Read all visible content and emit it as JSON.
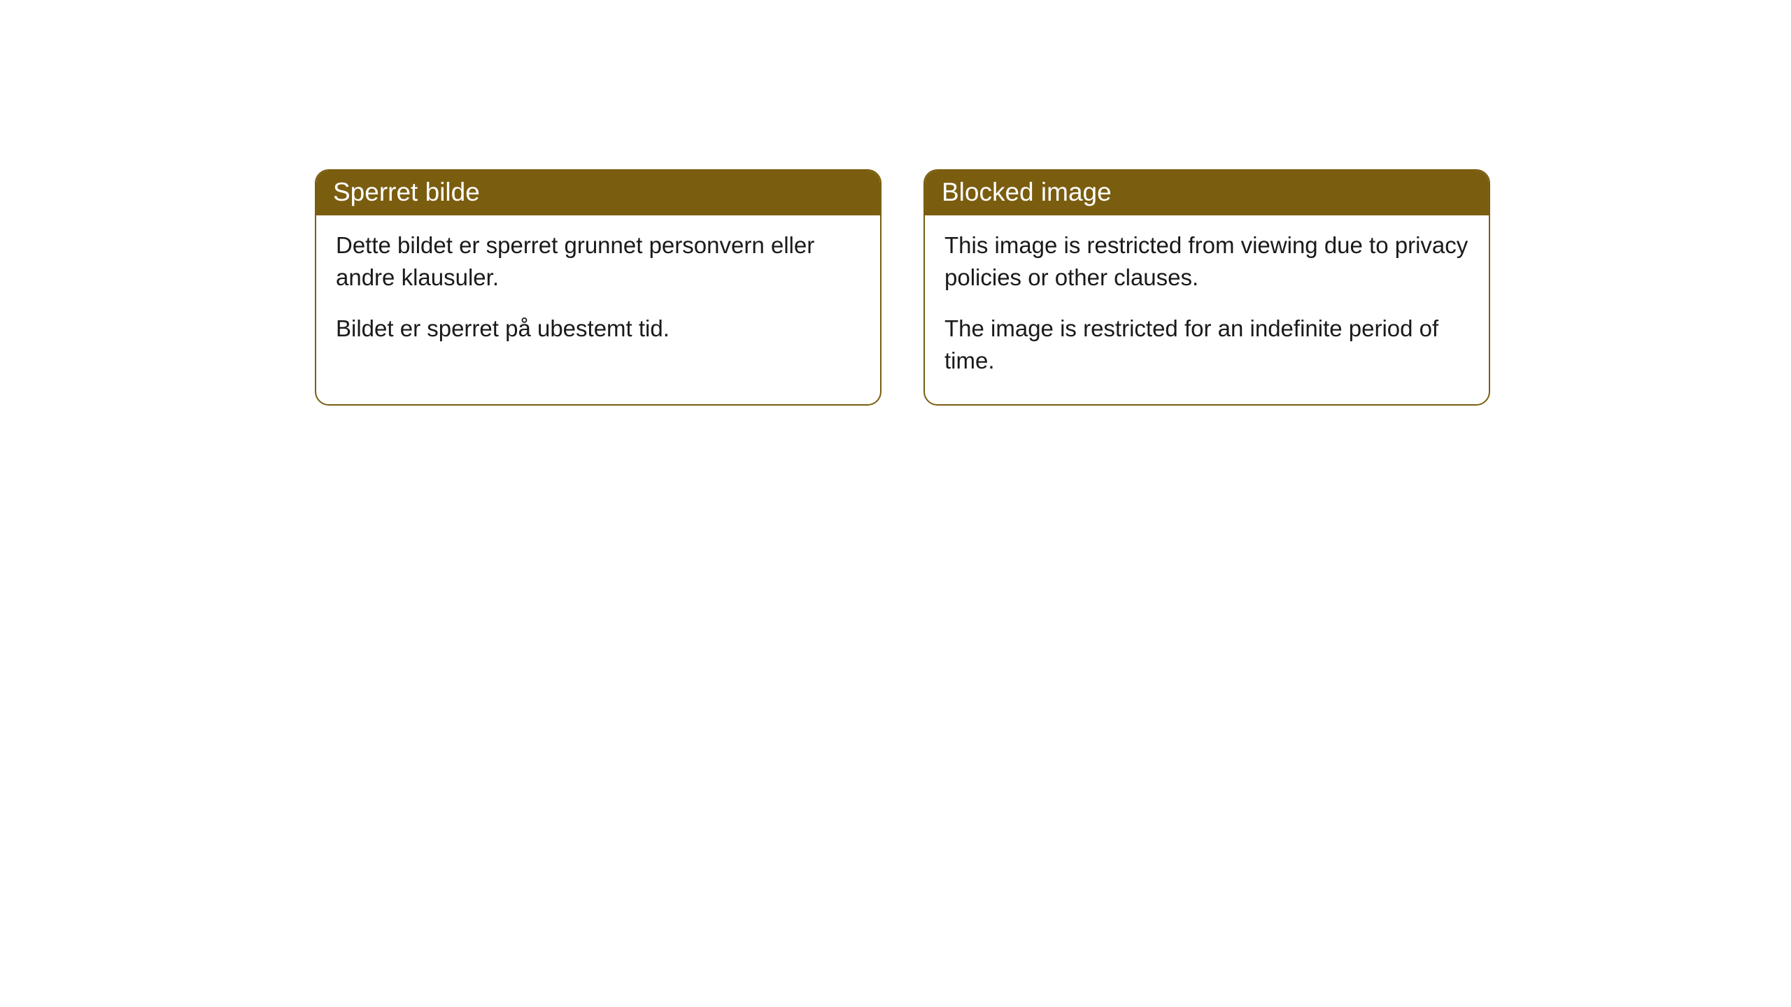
{
  "notices": [
    {
      "title": "Sperret bilde",
      "paragraph1": "Dette bildet er sperret grunnet personvern eller andre klausuler.",
      "paragraph2": "Bildet er sperret på ubestemt tid."
    },
    {
      "title": "Blocked image",
      "paragraph1": "This image is restricted from viewing due to privacy policies or other clauses.",
      "paragraph2": "The image is restricted for an indefinite period of time."
    }
  ],
  "colors": {
    "header_bg": "#7a5d0f",
    "header_text": "#ffffff",
    "border": "#7a5d0f",
    "body_text": "#1a1a1a",
    "page_bg": "#ffffff"
  }
}
